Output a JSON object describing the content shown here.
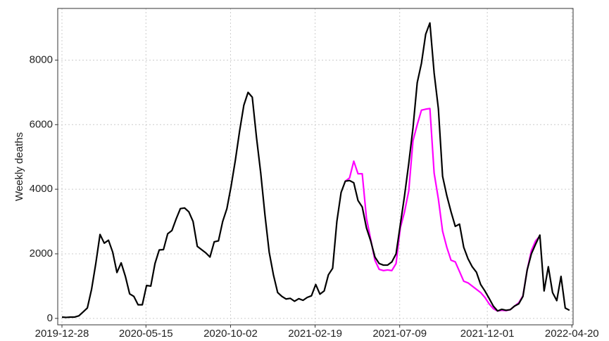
{
  "chart_data": {
    "type": "line",
    "y_label": "Weekly deaths",
    "x": [
      "2019-12-28",
      "2020-01-04",
      "2020-01-11",
      "2020-01-18",
      "2020-01-25",
      "2020-02-01",
      "2020-02-08",
      "2020-02-15",
      "2020-02-22",
      "2020-02-29",
      "2020-03-07",
      "2020-03-14",
      "2020-03-21",
      "2020-03-28",
      "2020-04-04",
      "2020-04-11",
      "2020-04-18",
      "2020-04-25",
      "2020-05-02",
      "2020-05-09",
      "2020-05-16",
      "2020-05-23",
      "2020-05-30",
      "2020-06-06",
      "2020-06-13",
      "2020-06-20",
      "2020-06-27",
      "2020-07-04",
      "2020-07-11",
      "2020-07-18",
      "2020-07-25",
      "2020-08-01",
      "2020-08-08",
      "2020-08-15",
      "2020-08-22",
      "2020-08-29",
      "2020-09-05",
      "2020-09-12",
      "2020-09-19",
      "2020-09-26",
      "2020-10-03",
      "2020-10-10",
      "2020-10-17",
      "2020-10-24",
      "2020-10-31",
      "2020-11-07",
      "2020-11-14",
      "2020-11-21",
      "2020-11-28",
      "2020-12-05",
      "2020-12-12",
      "2020-12-19",
      "2020-12-26",
      "2021-01-02",
      "2021-01-09",
      "2021-01-16",
      "2021-01-23",
      "2021-01-30",
      "2021-02-06",
      "2021-02-13",
      "2021-02-20",
      "2021-02-27",
      "2021-03-06",
      "2021-03-13",
      "2021-03-20",
      "2021-03-27",
      "2021-04-03",
      "2021-04-10",
      "2021-04-17",
      "2021-04-24",
      "2021-05-01",
      "2021-05-08",
      "2021-05-15",
      "2021-05-22",
      "2021-05-29",
      "2021-06-05",
      "2021-06-12",
      "2021-06-19",
      "2021-06-26",
      "2021-07-03",
      "2021-07-10",
      "2021-07-17",
      "2021-07-24",
      "2021-07-31",
      "2021-08-07",
      "2021-08-14",
      "2021-08-21",
      "2021-08-28",
      "2021-09-04",
      "2021-09-11",
      "2021-09-18",
      "2021-09-25",
      "2021-10-02",
      "2021-10-09",
      "2021-10-16",
      "2021-10-23",
      "2021-10-30",
      "2021-11-06",
      "2021-11-13",
      "2021-11-20",
      "2021-11-27",
      "2021-12-04",
      "2021-12-11",
      "2021-12-18",
      "2021-12-25",
      "2022-01-01",
      "2022-01-08",
      "2022-01-15",
      "2022-01-22",
      "2022-01-29",
      "2022-02-05",
      "2022-02-12",
      "2022-02-19",
      "2022-02-26",
      "2022-03-05",
      "2022-03-12",
      "2022-03-19",
      "2022-03-26",
      "2022-04-02",
      "2022-04-09",
      "2022-04-16"
    ],
    "series": [
      {
        "color": "#ff00ff",
        "values": [
          null,
          null,
          null,
          null,
          null,
          null,
          null,
          null,
          null,
          null,
          null,
          null,
          null,
          null,
          null,
          null,
          null,
          null,
          null,
          null,
          null,
          null,
          null,
          null,
          null,
          null,
          null,
          null,
          null,
          null,
          null,
          null,
          null,
          null,
          null,
          null,
          null,
          null,
          null,
          null,
          null,
          null,
          null,
          null,
          null,
          null,
          null,
          null,
          null,
          null,
          null,
          null,
          null,
          null,
          null,
          null,
          null,
          null,
          null,
          null,
          null,
          null,
          null,
          null,
          null,
          null,
          null,
          4250,
          4350,
          4870,
          4480,
          4480,
          3100,
          2450,
          1800,
          1520,
          1480,
          1500,
          1480,
          1700,
          2800,
          3300,
          3950,
          5500,
          6000,
          6450,
          6480,
          6500,
          4500,
          3700,
          2700,
          2200,
          1800,
          1750,
          1450,
          1150,
          1100,
          1000,
          900,
          800,
          650,
          450,
          300,
          230,
          250,
          240,
          270,
          380,
          480,
          700,
          1500,
          2100,
          2400,
          2550,
          null,
          null,
          null,
          null,
          null,
          null,
          null
        ]
      },
      {
        "color": "#000000",
        "values": [
          40,
          30,
          40,
          40,
          80,
          200,
          320,
          900,
          1700,
          2600,
          2330,
          2420,
          2050,
          1420,
          1720,
          1300,
          760,
          680,
          420,
          420,
          1020,
          1000,
          1700,
          2120,
          2130,
          2620,
          2720,
          3080,
          3400,
          3420,
          3300,
          3000,
          2230,
          2130,
          2030,
          1900,
          2370,
          2400,
          3000,
          3400,
          4100,
          4900,
          5800,
          6600,
          7000,
          6850,
          5600,
          4500,
          3200,
          2050,
          1350,
          800,
          680,
          600,
          620,
          530,
          610,
          560,
          650,
          700,
          1050,
          750,
          850,
          1350,
          1550,
          3000,
          3900,
          4250,
          4270,
          4200,
          3650,
          3450,
          2800,
          2400,
          1900,
          1700,
          1650,
          1650,
          1750,
          2000,
          2900,
          3800,
          4800,
          5900,
          7300,
          7900,
          8800,
          9150,
          7600,
          6500,
          4400,
          3800,
          3300,
          2850,
          2920,
          2200,
          1850,
          1600,
          1430,
          1050,
          850,
          620,
          380,
          230,
          280,
          250,
          270,
          380,
          450,
          680,
          1500,
          2000,
          2300,
          2580,
          850,
          1600,
          800,
          550,
          1300,
          320,
          250
        ]
      }
    ],
    "xlim": [
      "2019-12-21",
      "2022-04-22"
    ],
    "xticks": [
      "2019-12-28",
      "2020-05-15",
      "2020-10-02",
      "2021-02-19",
      "2021-07-09",
      "2021-12-01",
      "2022-04-20"
    ],
    "ylim": [
      -200,
      9600
    ],
    "yticks": [
      0,
      2000,
      4000,
      6000,
      8000
    ],
    "grid": true
  }
}
